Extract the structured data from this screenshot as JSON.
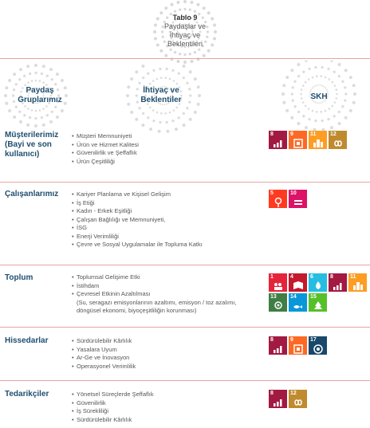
{
  "title": {
    "number": "Tablo 9",
    "line1": "Paydaşlar ve",
    "line2": "İhtiyaç ve",
    "line3": "Beklentileri"
  },
  "columns": {
    "stakeholders": [
      "Paydaş",
      "Gruplarımız"
    ],
    "needs": [
      "İhtiyaç ve",
      "Beklentiler"
    ],
    "sdg": "SKH"
  },
  "rows": [
    {
      "title": [
        "Müşterilerimiz",
        "(Bayi ve son",
        "kullanıcı)"
      ],
      "items": [
        "Müşteri Memnuniyeti",
        "Ürün ve Hizmet Kalitesi",
        "Güvenilirlik ve Şeffaflık",
        "Ürün Çeşitliliği"
      ],
      "sdgs": [
        8,
        9,
        11,
        12
      ]
    },
    {
      "title": [
        "Çalışanlarımız"
      ],
      "items": [
        "Kariyer Planlama ve Kişisel Gelişim",
        "İş Etiği",
        "Kadın - Erkek Eşitliği",
        "Çalışan Bağlılığı ve Memnuniyeti,",
        "İSG",
        "Enerji Verimliliği",
        "Çevre ve Sosyal Uygulamalar ile Topluma Katkı"
      ],
      "sdgs": [
        5,
        10
      ]
    },
    {
      "title": [
        "Toplum"
      ],
      "items": [
        "Toplumsal Gelişime Etki",
        "İstihdam",
        "Çevresel Etkinin Azaltılması"
      ],
      "subitems": [
        "(Su, seragazı emisyonlarının azaltımı, emisyon / toz azalımı,",
        "döngüsel ekonomi, biyoçeşitliliğin korunması)"
      ],
      "sdgs": [
        1,
        4,
        6,
        8,
        11,
        13,
        14,
        15
      ]
    },
    {
      "title": [
        "Hissedarlar"
      ],
      "items": [
        "Sürdürülebilir Kârlılık",
        "Yasalara Uyum",
        "Ar-Ge ve İnovasyon",
        "Operasyonel Verimlilik"
      ],
      "sdgs": [
        8,
        9,
        17
      ]
    },
    {
      "title": [
        "Tedarikçiler"
      ],
      "items": [
        "Yönetsel Süreçlerde Şeffaflık",
        "Güvenilirlik",
        "İş Sürekliliği",
        "Sürdürülebilir Kârlılık"
      ],
      "sdgs": [
        8,
        12
      ]
    }
  ],
  "sdg_colors": {
    "1": "#e5243b",
    "4": "#c5192d",
    "5": "#ff3a21",
    "6": "#26bde2",
    "8": "#a21942",
    "9": "#fd6925",
    "10": "#dd1367",
    "11": "#fd9d24",
    "12": "#bf8b2e",
    "13": "#3f7e44",
    "14": "#0a97d9",
    "15": "#56c02b",
    "17": "#19486a"
  },
  "accent_color": "#1f4e6e",
  "divider_color": "#e6a79f"
}
